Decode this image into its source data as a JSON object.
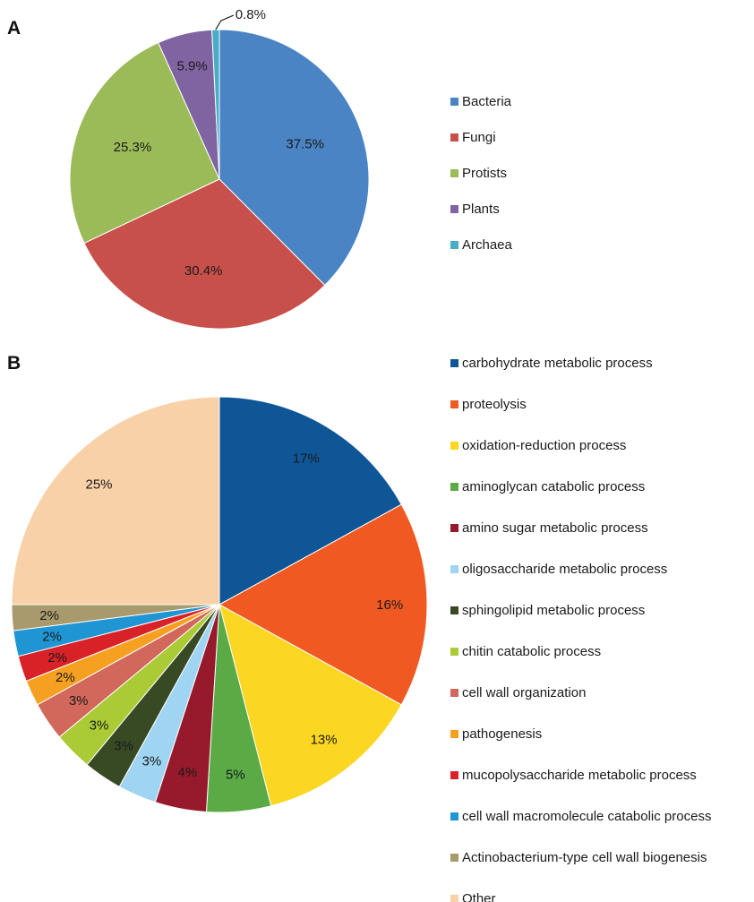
{
  "chart_data": [
    {
      "type": "pie",
      "panel": "A",
      "categories": [
        "Bacteria",
        "Fungi",
        "Protists",
        "Plants",
        "Archaea"
      ],
      "values": [
        37.5,
        30.4,
        25.3,
        5.9,
        0.8
      ],
      "labels": [
        "37.5%",
        "30.4%",
        "25.3%",
        "5.9%",
        "0.8%"
      ],
      "colors": [
        "#4a84c4",
        "#c8504b",
        "#9bbb59",
        "#8064a2",
        "#4bacc6"
      ],
      "legend_position": "right"
    },
    {
      "type": "pie",
      "panel": "B",
      "categories": [
        "carbohydrate metabolic process",
        "proteolysis",
        "oxidation-reduction process",
        "aminoglycan catabolic process",
        "amino sugar metabolic process",
        "oligosaccharide metabolic process",
        "sphingolipid metabolic process",
        "chitin catabolic process",
        "cell wall organization",
        "pathogenesis",
        "mucopolysaccharide metabolic process",
        "cell wall macromolecule catabolic process",
        "Actinobacterium-type cell wall biogenesis",
        "Other"
      ],
      "values": [
        17,
        16,
        13,
        5,
        4,
        3,
        3,
        3,
        3,
        2,
        2,
        2,
        2,
        25
      ],
      "labels": [
        "17%",
        "16%",
        "13%",
        "5%",
        "4%",
        "3%",
        "3%",
        "3%",
        "3%",
        "2%",
        "2%",
        "2%",
        "2%",
        "25%"
      ],
      "colors": [
        "#0f5697",
        "#f05a22",
        "#fbd622",
        "#5aab46",
        "#961a2b",
        "#9fd4f2",
        "#374a24",
        "#aacb35",
        "#d2675b",
        "#f5a021",
        "#d92228",
        "#1f95d3",
        "#a89a6c",
        "#f9d1a8"
      ],
      "legend_position": "right"
    }
  ]
}
